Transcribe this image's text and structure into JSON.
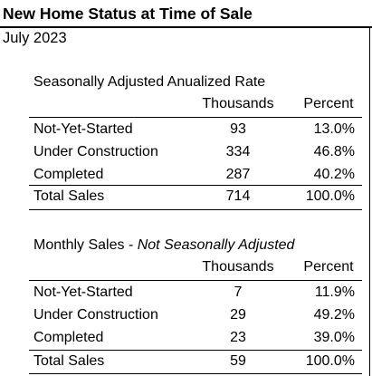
{
  "title": "New Home Status at Time of Sale",
  "subtitle": "July 2023",
  "columns": {
    "thousands": "Thousands",
    "percent": "Percent"
  },
  "sections": [
    {
      "title": "Seasonally Adjusted Anualized Rate",
      "title_italic": "",
      "rows": [
        {
          "label": "Not-Yet-Started",
          "thousands": "93",
          "percent": "13.0%"
        },
        {
          "label": "Under Construction",
          "thousands": "334",
          "percent": "46.8%"
        },
        {
          "label": "Completed",
          "thousands": "287",
          "percent": "40.2%"
        }
      ],
      "total": {
        "label": "Total Sales",
        "thousands": "714",
        "percent": "100.0%"
      }
    },
    {
      "title": "Monthly Sales - ",
      "title_italic": "Not Seasonally Adjusted",
      "rows": [
        {
          "label": "Not-Yet-Started",
          "thousands": "7",
          "percent": "11.9%"
        },
        {
          "label": "Under Construction",
          "thousands": "29",
          "percent": "49.2%"
        },
        {
          "label": "Completed",
          "thousands": "23",
          "percent": "39.0%"
        }
      ],
      "total": {
        "label": "Total Sales",
        "thousands": "59",
        "percent": "100.0%"
      }
    }
  ]
}
